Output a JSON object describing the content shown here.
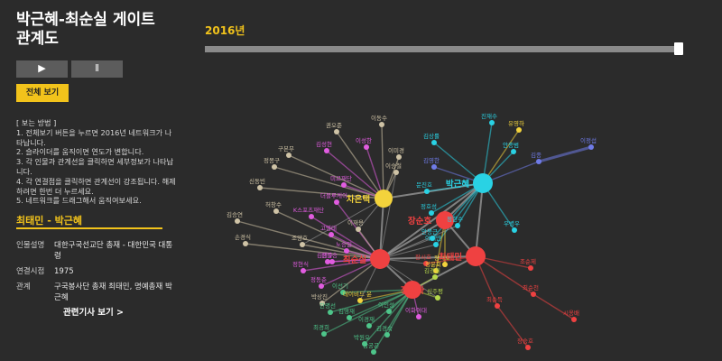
{
  "title": "박근혜-최순실 게이트 관계도",
  "controls": {
    "play_icon": "▶",
    "pause_icon": "ǁ",
    "view_all": "전체 보기"
  },
  "instructions": {
    "header": "[ 보는 방법 ]",
    "lines": [
      "1. 전체보기 버튼을 누르면 2016년 네트워크가 나타납니다.",
      "2. 슬라이더를 움직이면 연도가 변합니다.",
      "3. 각 인물과 관계선을 클릭하면 세부정보가 나타납니다.",
      "4. 각 연결점을 클릭하면 관계선이 강조됩니다. 해제하려면 한번 더 누르세요.",
      "5. 네트워크를 드래그해서 움직여보세요."
    ]
  },
  "selected": {
    "pair": "최태민 - 박근혜",
    "rows": [
      {
        "label": "인물설명",
        "value": "대한구국선교단 총재 - 대한민국 대통령"
      },
      {
        "label": "연결시점",
        "value": "1975"
      },
      {
        "label": "관계",
        "value": "구국봉사단 총재 최태민, 명예총재 박근혜"
      }
    ],
    "link": "관련기사 보기 >"
  },
  "timeline": {
    "year": "2016년",
    "position": 1.0
  },
  "colors": {
    "accent": "#f2c31b",
    "red": "#ef4141",
    "cyan": "#29d2e4",
    "yellow": "#f3d33c",
    "pink": "#e15ce0",
    "blue": "#6f7be8",
    "green": "#4ec58a",
    "beige": "#cfc3a6",
    "lime": "#b6d94b"
  },
  "graph": {
    "hubs": [
      {
        "id": "park",
        "label": "박근혜",
        "group": "cyan"
      },
      {
        "id": "choi",
        "label": "최순실",
        "group": "red"
      },
      {
        "id": "chatm",
        "label": "최태민",
        "group": "red"
      },
      {
        "id": "jang",
        "label": "장순호",
        "group": "red"
      },
      {
        "id": "jung",
        "label": "정유라",
        "group": "red"
      },
      {
        "id": "cha",
        "label": "차은택",
        "group": "yellow"
      }
    ],
    "nodes": [
      {
        "id": "n1",
        "label": "진재수",
        "group": "cyan",
        "hub": "park"
      },
      {
        "id": "n2",
        "label": "유영하",
        "group": "yellow",
        "hub": "park"
      },
      {
        "id": "n3",
        "label": "안종범",
        "group": "cyan",
        "hub": "park"
      },
      {
        "id": "n4",
        "label": "김종",
        "group": "blue",
        "hub": "park"
      },
      {
        "id": "n5",
        "label": "이정섭",
        "group": "blue",
        "hub": "n4"
      },
      {
        "id": "n6",
        "label": "김상률",
        "group": "cyan",
        "hub": "park"
      },
      {
        "id": "n7",
        "label": "김영한",
        "group": "blue",
        "hub": "park"
      },
      {
        "id": "n8",
        "label": "문진호",
        "group": "cyan",
        "hub": "park"
      },
      {
        "id": "n9",
        "label": "정호성",
        "group": "cyan",
        "hub": "park"
      },
      {
        "id": "n10",
        "label": "우병우",
        "group": "cyan",
        "hub": "park"
      },
      {
        "id": "n11",
        "label": "정한수",
        "group": "cyan",
        "hub": "park"
      },
      {
        "id": "n12",
        "label": "안봉근",
        "group": "cyan",
        "hub": "park"
      },
      {
        "id": "n13",
        "label": "이재만",
        "group": "cyan",
        "hub": "park"
      },
      {
        "id": "n14",
        "label": "조순제",
        "group": "red",
        "hub": "chatm"
      },
      {
        "id": "n15",
        "label": "최순천",
        "group": "red",
        "hub": "chatm"
      },
      {
        "id": "n16",
        "label": "최순득",
        "group": "red",
        "hub": "chatm"
      },
      {
        "id": "n17",
        "label": "시옹배",
        "group": "red",
        "hub": "n15"
      },
      {
        "id": "n18",
        "label": "장승호",
        "group": "red",
        "hub": "n16"
      },
      {
        "id": "n19",
        "label": "장시호",
        "group": "red",
        "hub": "chatm"
      },
      {
        "id": "n20",
        "label": "박상진",
        "group": "beige",
        "hub": "choi"
      },
      {
        "id": "n21",
        "label": "권오준",
        "group": "beige",
        "hub": "cha"
      },
      {
        "id": "n22",
        "label": "이동수",
        "group": "beige",
        "hub": "cha"
      },
      {
        "id": "n23",
        "label": "구본무",
        "group": "beige",
        "hub": "cha"
      },
      {
        "id": "n24",
        "label": "정몽구",
        "group": "beige",
        "hub": "cha"
      },
      {
        "id": "n25",
        "label": "신동빈",
        "group": "beige",
        "hub": "cha"
      },
      {
        "id": "n26",
        "label": "허창수",
        "group": "beige",
        "hub": "choi"
      },
      {
        "id": "n27",
        "label": "김승연",
        "group": "beige",
        "hub": "choi"
      },
      {
        "id": "n28",
        "label": "손경식",
        "group": "beige",
        "hub": "choi"
      },
      {
        "id": "n29",
        "label": "조양호",
        "group": "beige",
        "hub": "choi"
      },
      {
        "id": "n30",
        "label": "김성현",
        "group": "pink",
        "hub": "cha"
      },
      {
        "id": "n31",
        "label": "이성한",
        "group": "pink",
        "hub": "cha"
      },
      {
        "id": "n32",
        "label": "이미경",
        "group": "beige",
        "hub": "cha"
      },
      {
        "id": "n33",
        "label": "이승철",
        "group": "beige",
        "hub": "cha"
      },
      {
        "id": "n34",
        "label": "김영수",
        "group": "pink",
        "hub": "choi"
      },
      {
        "id": "n35",
        "label": "더블루케이",
        "group": "pink",
        "hub": "choi"
      },
      {
        "id": "n36",
        "label": "K스포츠재단",
        "group": "pink",
        "hub": "choi"
      },
      {
        "id": "n37",
        "label": "고영태",
        "group": "pink",
        "hub": "choi"
      },
      {
        "id": "n38",
        "label": "미르재단",
        "group": "pink",
        "hub": "cha"
      },
      {
        "id": "n39",
        "label": "이재용",
        "group": "beige",
        "hub": "choi"
      },
      {
        "id": "n40",
        "label": "노승일",
        "group": "pink",
        "hub": "choi"
      },
      {
        "id": "n41",
        "label": "김필승",
        "group": "pink",
        "hub": "choi"
      },
      {
        "id": "n42",
        "label": "정현식",
        "group": "pink",
        "hub": "choi"
      },
      {
        "id": "n43",
        "label": "정동춘",
        "group": "pink",
        "hub": "choi"
      },
      {
        "id": "n44",
        "label": "이선기",
        "group": "green",
        "hub": "jung"
      },
      {
        "id": "n45",
        "label": "데이비드 윤",
        "group": "yellow",
        "hub": "jung"
      },
      {
        "id": "n46",
        "label": "한명선",
        "group": "green",
        "hub": "jung"
      },
      {
        "id": "n47",
        "label": "김영재",
        "group": "green",
        "hub": "jung"
      },
      {
        "id": "n48",
        "label": "이경재",
        "group": "green",
        "hub": "jung"
      },
      {
        "id": "n49",
        "label": "이화여대",
        "group": "pink",
        "hub": "jung"
      },
      {
        "id": "n50",
        "label": "이인성",
        "group": "green",
        "hub": "jung"
      },
      {
        "id": "n51",
        "label": "최경희",
        "group": "green",
        "hub": "jung"
      },
      {
        "id": "n52",
        "label": "박원오",
        "group": "green",
        "hub": "jung"
      },
      {
        "id": "n53",
        "label": "김경숙",
        "group": "green",
        "hub": "jung"
      },
      {
        "id": "n54",
        "label": "남궁곤",
        "group": "green",
        "hub": "jung"
      },
      {
        "id": "n55",
        "label": "신주평",
        "group": "lime",
        "hub": "jung"
      },
      {
        "id": "n56",
        "label": "정윤회",
        "group": "yellow",
        "hub": "jang"
      },
      {
        "id": "n57",
        "label": "김경원",
        "group": "lime",
        "hub": "jung"
      },
      {
        "id": "n58",
        "label": "장시호",
        "group": "yellow",
        "hub": "jang"
      }
    ]
  }
}
